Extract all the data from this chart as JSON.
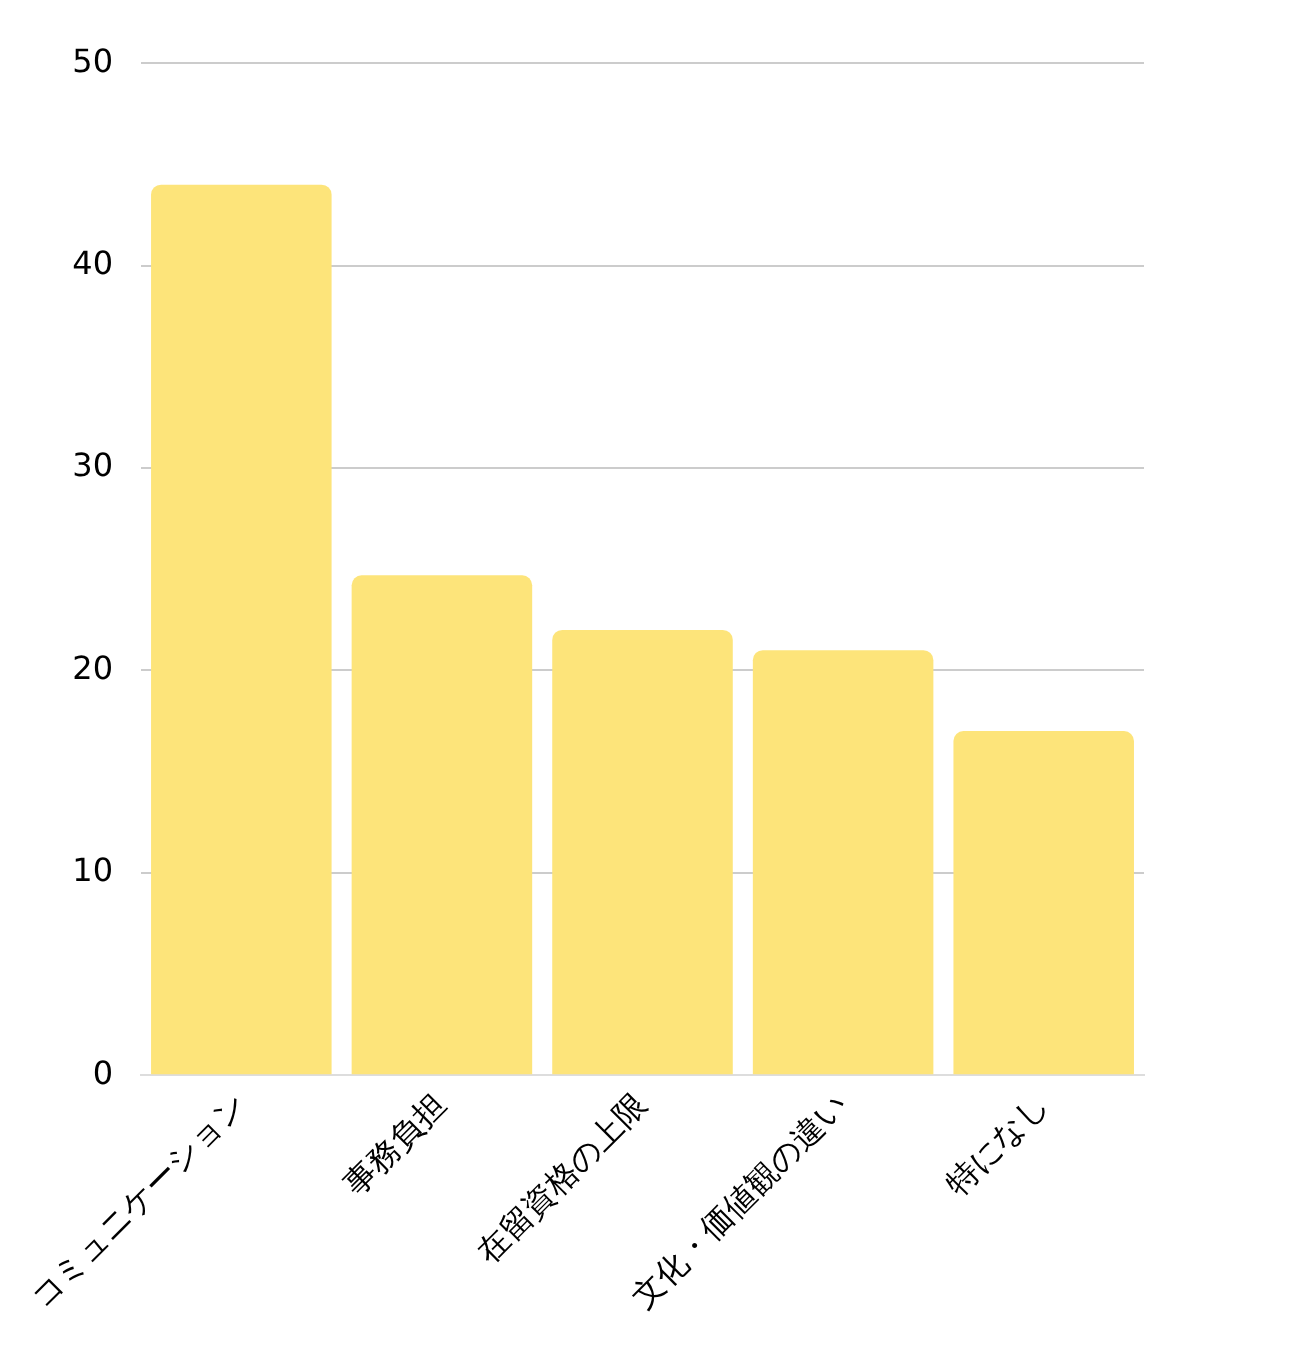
{
  "chart_data": {
    "type": "bar",
    "categories": [
      "コミュニケーション",
      "事務負担",
      "在留資格の上限",
      "文化・価値観の違い",
      "特になし"
    ],
    "values": [
      44,
      24.7,
      22,
      21,
      17
    ],
    "color": "#fde47a",
    "ylim": [
      0,
      50
    ],
    "yticks": [
      0,
      10,
      20,
      30,
      40,
      50
    ],
    "grid": "y",
    "legend": false
  }
}
